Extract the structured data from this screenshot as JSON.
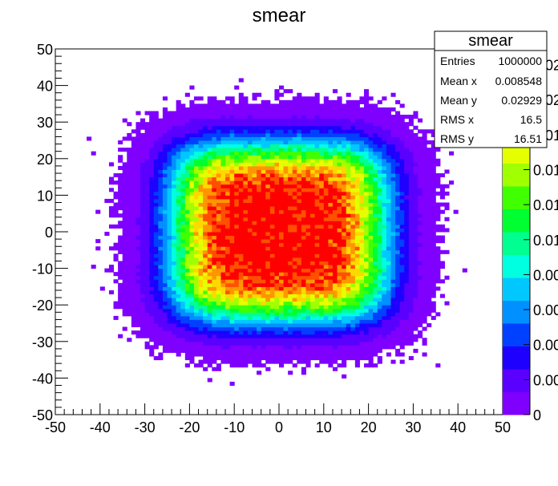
{
  "chart_data": {
    "type": "heatmap",
    "title": "smear",
    "xlabel": "",
    "ylabel": "",
    "xlim": [
      -50,
      50
    ],
    "ylim": [
      -50,
      50
    ],
    "x_ticks": [
      "-50",
      "-40",
      "-30",
      "-20",
      "-10",
      "0",
      "10",
      "20",
      "30",
      "40",
      "50"
    ],
    "y_ticks": [
      "-50",
      "-40",
      "-30",
      "-20",
      "-10",
      "0",
      "10",
      "20",
      "30",
      "40",
      "50"
    ],
    "colorbar_labels": [
      "0",
      "0.00",
      "0.00",
      "0.00",
      "0.00",
      "0.01",
      "0.01",
      "0.01",
      "0.01",
      "0.02",
      "0.02"
    ],
    "colorbar_palette": [
      "#7f00ff",
      "#5a00ff",
      "#1e00ff",
      "#0040ff",
      "#0090ff",
      "#00c8ff",
      "#00ffe0",
      "#00ff90",
      "#00ff30",
      "#40ff00",
      "#a0ff00",
      "#e6ff00",
      "#ffd800",
      "#ff9600",
      "#ff5000",
      "#ff0000"
    ],
    "distribution": {
      "description_type": "uniform square smeared",
      "center": [
        0,
        0
      ],
      "plateau_halfwidth": 22,
      "smearing": 6
    },
    "stats_box": {
      "title": "smear",
      "rows": [
        {
          "label": "Entries",
          "value": "1000000"
        },
        {
          "label": "Mean x",
          "value": "0.008548"
        },
        {
          "label": "Mean y",
          "value": "0.02929"
        },
        {
          "label": "RMS x",
          "value": "16.5"
        },
        {
          "label": "RMS y",
          "value": "16.51"
        }
      ]
    },
    "grid": false,
    "legend": "top-right"
  }
}
